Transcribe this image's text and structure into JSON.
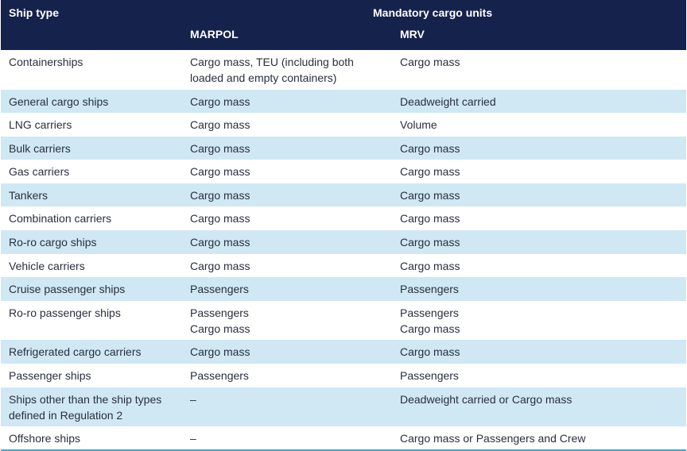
{
  "header": {
    "ship_type": "Ship type",
    "mandatory": "Mandatory cargo units",
    "marpol": "MARPOL",
    "mrv": "MRV"
  },
  "rows": [
    {
      "ship": [
        "Containerships"
      ],
      "marpol": [
        "Cargo mass, TEU (including both",
        "loaded and empty containers)"
      ],
      "mrv": [
        "Cargo mass"
      ]
    },
    {
      "ship": [
        "General cargo ships"
      ],
      "marpol": [
        "Cargo mass"
      ],
      "mrv": [
        "Deadweight carried"
      ]
    },
    {
      "ship": [
        "LNG carriers"
      ],
      "marpol": [
        "Cargo mass"
      ],
      "mrv": [
        "Volume"
      ]
    },
    {
      "ship": [
        "Bulk carriers"
      ],
      "marpol": [
        "Cargo mass"
      ],
      "mrv": [
        "Cargo mass"
      ]
    },
    {
      "ship": [
        "Gas carriers"
      ],
      "marpol": [
        "Cargo mass"
      ],
      "mrv": [
        "Cargo mass"
      ]
    },
    {
      "ship": [
        "Tankers"
      ],
      "marpol": [
        "Cargo mass"
      ],
      "mrv": [
        "Cargo mass"
      ]
    },
    {
      "ship": [
        "Combination carriers"
      ],
      "marpol": [
        "Cargo mass"
      ],
      "mrv": [
        "Cargo mass"
      ]
    },
    {
      "ship": [
        "Ro-ro cargo ships"
      ],
      "marpol": [
        "Cargo mass"
      ],
      "mrv": [
        "Cargo mass"
      ]
    },
    {
      "ship": [
        "Vehicle carriers"
      ],
      "marpol": [
        "Cargo mass"
      ],
      "mrv": [
        "Cargo mass"
      ]
    },
    {
      "ship": [
        "Cruise passenger ships"
      ],
      "marpol": [
        "Passengers"
      ],
      "mrv": [
        "Passengers"
      ]
    },
    {
      "ship": [
        "Ro-ro passenger ships"
      ],
      "marpol": [
        "Passengers",
        "Cargo mass"
      ],
      "mrv": [
        "Passengers",
        "Cargo mass"
      ]
    },
    {
      "ship": [
        "Refrigerated cargo carriers"
      ],
      "marpol": [
        "Cargo mass"
      ],
      "mrv": [
        "Cargo mass"
      ]
    },
    {
      "ship": [
        "Passenger ships"
      ],
      "marpol": [
        "Passengers"
      ],
      "mrv": [
        "Passengers"
      ]
    },
    {
      "ship": [
        "Ships other than the ship types",
        "defined in Regulation 2"
      ],
      "marpol": [
        "–"
      ],
      "mrv": [
        "Deadweight carried or Cargo mass"
      ]
    },
    {
      "ship": [
        "Offshore ships"
      ],
      "marpol": [
        "–"
      ],
      "mrv": [
        "Cargo mass or Passengers and Crew"
      ]
    }
  ]
}
